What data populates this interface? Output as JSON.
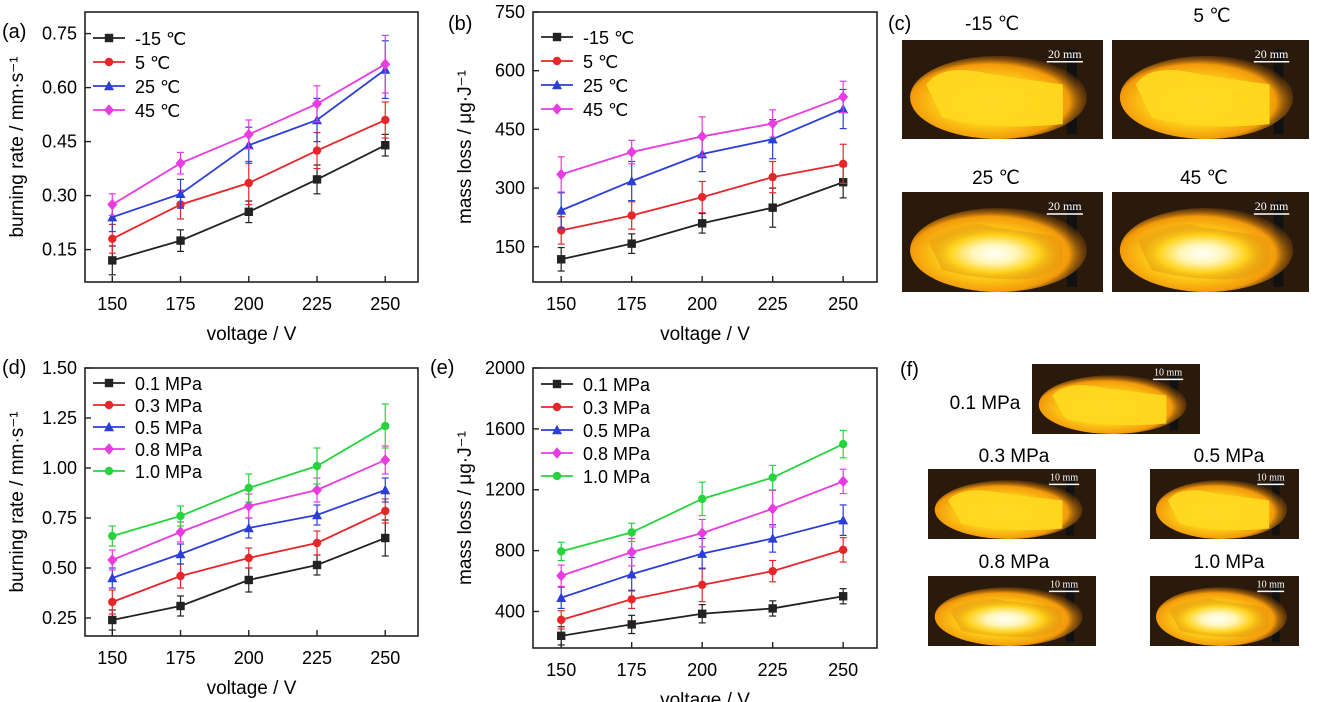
{
  "panel_labels": [
    "(a)",
    "(b)",
    "(c)",
    "(d)",
    "(e)",
    "(f)"
  ],
  "chart_data": [
    {
      "id": "a",
      "type": "line",
      "xlabel": "voltage / V",
      "ylabel": "burning rate / mm·s⁻¹",
      "x": [
        150,
        175,
        200,
        225,
        250
      ],
      "xticks": [
        "150",
        "175",
        "200",
        "225",
        "250"
      ],
      "ylim": [
        0.06,
        0.81
      ],
      "yticks": [
        0.15,
        0.3,
        0.45,
        0.6,
        0.75
      ],
      "ytick_labels": [
        "0.15",
        "0.30",
        "0.45",
        "0.60",
        "0.75"
      ],
      "legend_position": "top-left",
      "series": [
        {
          "name": "-15 ℃",
          "color": "#222222",
          "marker": "square",
          "values": [
            0.12,
            0.175,
            0.255,
            0.345,
            0.44
          ],
          "errors": [
            0.04,
            0.03,
            0.03,
            0.04,
            0.03
          ]
        },
        {
          "name": "5 ℃",
          "color": "#e8262a",
          "marker": "circle",
          "values": [
            0.18,
            0.275,
            0.335,
            0.425,
            0.51
          ],
          "errors": [
            0.04,
            0.04,
            0.06,
            0.05,
            0.05
          ]
        },
        {
          "name": "25 ℃",
          "color": "#2b3ed8",
          "marker": "triangle",
          "values": [
            0.24,
            0.305,
            0.44,
            0.51,
            0.65
          ],
          "errors": [
            0.04,
            0.04,
            0.05,
            0.06,
            0.08
          ]
        },
        {
          "name": "45 ℃",
          "color": "#e83be0",
          "marker": "diamond",
          "values": [
            0.275,
            0.39,
            0.47,
            0.555,
            0.665
          ],
          "errors": [
            0.03,
            0.03,
            0.04,
            0.05,
            0.08
          ]
        }
      ]
    },
    {
      "id": "b",
      "type": "line",
      "xlabel": "voltage / V",
      "ylabel": "mass loss / μg·J⁻¹",
      "x": [
        150,
        175,
        200,
        225,
        250
      ],
      "xticks": [
        "150",
        "175",
        "200",
        "225",
        "250"
      ],
      "ylim": [
        60,
        750
      ],
      "yticks": [
        150,
        300,
        450,
        600,
        750
      ],
      "ytick_labels": [
        "150",
        "300",
        "450",
        "600",
        "750"
      ],
      "legend_position": "top-left",
      "series": [
        {
          "name": "-15 ℃",
          "color": "#222222",
          "marker": "square",
          "values": [
            118,
            158,
            210,
            250,
            315
          ],
          "errors": [
            30,
            25,
            25,
            50,
            40
          ]
        },
        {
          "name": "5 ℃",
          "color": "#e8262a",
          "marker": "circle",
          "values": [
            192,
            230,
            277,
            328,
            362
          ],
          "errors": [
            35,
            35,
            40,
            40,
            50
          ]
        },
        {
          "name": "25 ℃",
          "color": "#2b3ed8",
          "marker": "triangle",
          "values": [
            243,
            318,
            387,
            425,
            502
          ],
          "errors": [
            45,
            50,
            45,
            50,
            50
          ]
        },
        {
          "name": "45 ℃",
          "color": "#e83be0",
          "marker": "diamond",
          "values": [
            335,
            392,
            432,
            465,
            533
          ],
          "errors": [
            45,
            30,
            50,
            35,
            40
          ]
        }
      ]
    },
    {
      "id": "d",
      "type": "line",
      "xlabel": "voltage / V",
      "ylabel": "burning rate / mm·s⁻¹",
      "x": [
        150,
        175,
        200,
        225,
        250
      ],
      "xticks": [
        "150",
        "175",
        "200",
        "225",
        "250"
      ],
      "ylim": [
        0.16,
        1.5
      ],
      "yticks": [
        0.25,
        0.5,
        0.75,
        1.0,
        1.25,
        1.5
      ],
      "ytick_labels": [
        "0.25",
        "0.50",
        "0.75",
        "1.00",
        "1.25",
        "1.50"
      ],
      "legend_position": "top-left",
      "series": [
        {
          "name": "0.1 MPa",
          "color": "#222222",
          "marker": "square",
          "values": [
            0.24,
            0.31,
            0.44,
            0.515,
            0.65
          ],
          "errors": [
            0.05,
            0.05,
            0.06,
            0.05,
            0.09
          ]
        },
        {
          "name": "0.3 MPa",
          "color": "#e8262a",
          "marker": "circle",
          "values": [
            0.33,
            0.46,
            0.55,
            0.625,
            0.785
          ],
          "errors": [
            0.06,
            0.06,
            0.05,
            0.06,
            0.06
          ]
        },
        {
          "name": "0.5 MPa",
          "color": "#2b3ed8",
          "marker": "triangle",
          "values": [
            0.45,
            0.57,
            0.7,
            0.765,
            0.89
          ],
          "errors": [
            0.05,
            0.05,
            0.05,
            0.05,
            0.06
          ]
        },
        {
          "name": "0.8 MPa",
          "color": "#e83be0",
          "marker": "diamond",
          "values": [
            0.54,
            0.68,
            0.81,
            0.89,
            1.04
          ],
          "errors": [
            0.05,
            0.05,
            0.06,
            0.06,
            0.07
          ]
        },
        {
          "name": "1.0 MPa",
          "color": "#27d43f",
          "marker": "circle",
          "values": [
            0.66,
            0.76,
            0.9,
            1.01,
            1.21
          ],
          "errors": [
            0.05,
            0.05,
            0.07,
            0.09,
            0.11
          ]
        }
      ]
    },
    {
      "id": "e",
      "type": "line",
      "xlabel": "voltage / V",
      "ylabel": "mass loss / μg·J⁻¹",
      "x": [
        150,
        175,
        200,
        225,
        250
      ],
      "xticks": [
        "150",
        "175",
        "200",
        "225",
        "250"
      ],
      "ylim": [
        160,
        2000
      ],
      "yticks": [
        400,
        800,
        1200,
        1600,
        2000
      ],
      "ytick_labels": [
        "400",
        "800",
        "1200",
        "1600",
        "2000"
      ],
      "legend_position": "top-left",
      "series": [
        {
          "name": "0.1 MPa",
          "color": "#222222",
          "marker": "square",
          "values": [
            240,
            315,
            385,
            420,
            500
          ],
          "errors": [
            60,
            60,
            60,
            50,
            50
          ]
        },
        {
          "name": "0.3 MPa",
          "color": "#e8262a",
          "marker": "circle",
          "values": [
            345,
            480,
            575,
            665,
            805
          ],
          "errors": [
            60,
            60,
            110,
            70,
            80
          ]
        },
        {
          "name": "0.5 MPa",
          "color": "#2b3ed8",
          "marker": "triangle",
          "values": [
            490,
            645,
            780,
            880,
            1000
          ],
          "errors": [
            70,
            110,
            100,
            90,
            100
          ]
        },
        {
          "name": "0.8 MPa",
          "color": "#e83be0",
          "marker": "diamond",
          "values": [
            635,
            790,
            915,
            1075,
            1255
          ],
          "errors": [
            70,
            90,
            90,
            120,
            80
          ]
        },
        {
          "name": "1.0 MPa",
          "color": "#27d43f",
          "marker": "circle",
          "values": [
            795,
            920,
            1140,
            1280,
            1500
          ],
          "errors": [
            60,
            60,
            110,
            80,
            90
          ]
        }
      ]
    }
  ],
  "photos_c": [
    {
      "label": "-15 ℃",
      "scale": "20 mm"
    },
    {
      "label": "5 ℃",
      "scale": "20 mm"
    },
    {
      "label": "25 ℃",
      "scale": "20 mm"
    },
    {
      "label": "45 ℃",
      "scale": "20 mm"
    }
  ],
  "photos_f": [
    {
      "label": "0.1 MPa",
      "scale": "10 mm"
    },
    {
      "label": "0.3 MPa",
      "scale": "10 mm"
    },
    {
      "label": "0.5 MPa",
      "scale": "10 mm"
    },
    {
      "label": "0.8 MPa",
      "scale": "10 mm"
    },
    {
      "label": "1.0 MPa",
      "scale": "10 mm"
    }
  ]
}
